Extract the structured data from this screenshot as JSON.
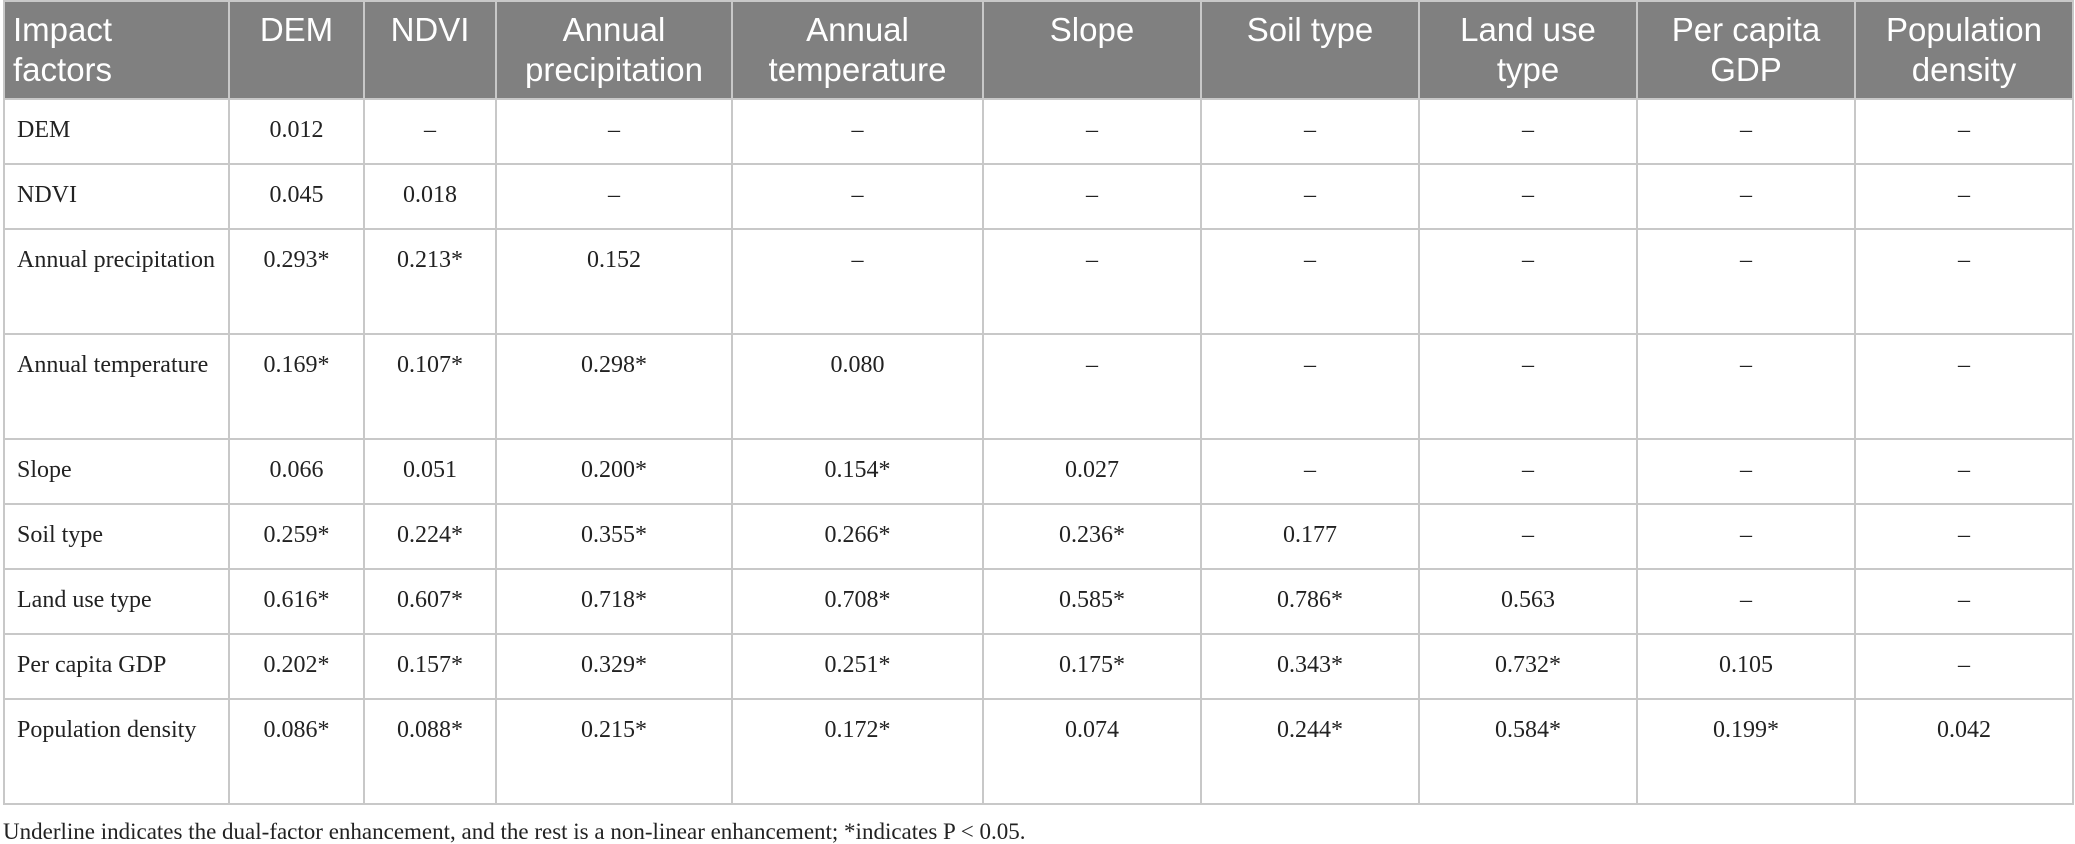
{
  "table": {
    "header": [
      "Impact factors",
      "DEM",
      "NDVI",
      "Annual precipitation",
      "Annual temperature",
      "Slope",
      "Soil type",
      "Land use type",
      "Per capita GDP",
      "Population density"
    ],
    "rows": [
      [
        "DEM",
        "0.012",
        "–",
        "–",
        "–",
        "–",
        "–",
        "–",
        "–",
        "–"
      ],
      [
        "NDVI",
        "0.045",
        "0.018",
        "–",
        "–",
        "–",
        "–",
        "–",
        "–",
        "–"
      ],
      [
        "Annual precipitation",
        "0.293*",
        "0.213*",
        "0.152",
        "–",
        "–",
        "–",
        "–",
        "–",
        "–"
      ],
      [
        "Annual temperature",
        "0.169*",
        "0.107*",
        "0.298*",
        "0.080",
        "–",
        "–",
        "–",
        "–",
        "–"
      ],
      [
        "Slope",
        "0.066",
        "0.051",
        "0.200*",
        "0.154*",
        "0.027",
        "–",
        "–",
        "–",
        "–"
      ],
      [
        "Soil type",
        "0.259*",
        "0.224*",
        "0.355*",
        "0.266*",
        "0.236*",
        "0.177",
        "–",
        "–",
        "–"
      ],
      [
        "Land use type",
        "0.616*",
        "0.607*",
        "0.718*",
        "0.708*",
        "0.585*",
        "0.786*",
        "0.563",
        "–",
        "–"
      ],
      [
        "Per capita GDP",
        "0.202*",
        "0.157*",
        "0.329*",
        "0.251*",
        "0.175*",
        "0.343*",
        "0.732*",
        "0.105",
        "–"
      ],
      [
        "Population density",
        "0.086*",
        "0.088*",
        "0.215*",
        "0.172*",
        "0.074",
        "0.244*",
        "0.584*",
        "0.199*",
        "0.042"
      ]
    ]
  },
  "footnote": "Underline indicates the dual-factor enhancement, and the rest is a non-linear enhancement; *indicates P < 0.05."
}
